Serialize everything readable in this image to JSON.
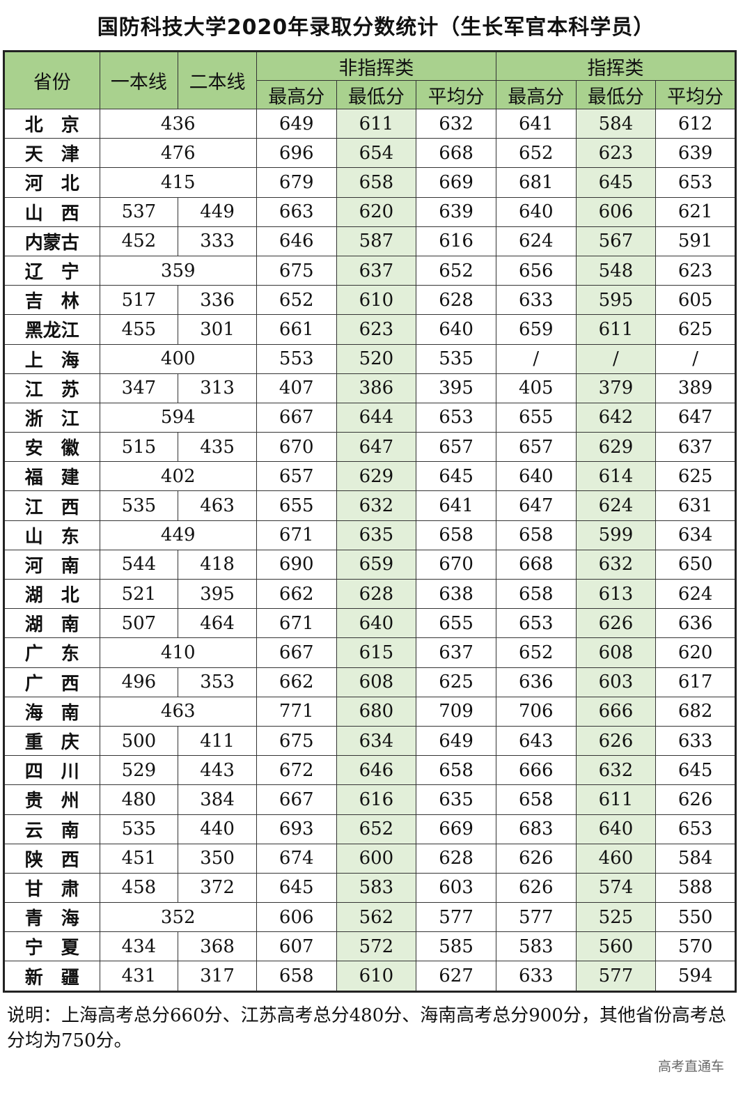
{
  "title": "国防科技大学2020年录取分数统计（生长军官本科学员）",
  "headers": {
    "province": "省份",
    "line1": "一本线",
    "line2": "二本线",
    "group1": "非指挥类",
    "group2": "指挥类",
    "max": "最高分",
    "min": "最低分",
    "avg": "平均分"
  },
  "colors": {
    "header_bg": "#a9d18e",
    "min_col_bg": "#e2efd9"
  },
  "rows": [
    {
      "p": "北　京",
      "l1": "436",
      "l2": null,
      "v": [
        "649",
        "611",
        "632",
        "641",
        "584",
        "612"
      ]
    },
    {
      "p": "天　津",
      "l1": "476",
      "l2": null,
      "v": [
        "696",
        "654",
        "668",
        "652",
        "623",
        "639"
      ]
    },
    {
      "p": "河　北",
      "l1": "415",
      "l2": null,
      "v": [
        "679",
        "658",
        "669",
        "681",
        "645",
        "653"
      ]
    },
    {
      "p": "山　西",
      "l1": "537",
      "l2": "449",
      "v": [
        "663",
        "620",
        "639",
        "640",
        "606",
        "621"
      ]
    },
    {
      "p": "内蒙古",
      "l1": "452",
      "l2": "333",
      "v": [
        "646",
        "587",
        "616",
        "624",
        "567",
        "591"
      ]
    },
    {
      "p": "辽　宁",
      "l1": "359",
      "l2": null,
      "v": [
        "675",
        "637",
        "652",
        "656",
        "548",
        "623"
      ]
    },
    {
      "p": "吉　林",
      "l1": "517",
      "l2": "336",
      "v": [
        "652",
        "610",
        "628",
        "633",
        "595",
        "605"
      ]
    },
    {
      "p": "黑龙江",
      "l1": "455",
      "l2": "301",
      "v": [
        "661",
        "623",
        "640",
        "659",
        "611",
        "625"
      ]
    },
    {
      "p": "上　海",
      "l1": "400",
      "l2": null,
      "v": [
        "553",
        "520",
        "535",
        "/",
        "/",
        "/"
      ]
    },
    {
      "p": "江　苏",
      "l1": "347",
      "l2": "313",
      "v": [
        "407",
        "386",
        "395",
        "405",
        "379",
        "389"
      ]
    },
    {
      "p": "浙　江",
      "l1": "594",
      "l2": null,
      "v": [
        "667",
        "644",
        "653",
        "655",
        "642",
        "647"
      ]
    },
    {
      "p": "安　徽",
      "l1": "515",
      "l2": "435",
      "v": [
        "670",
        "647",
        "657",
        "657",
        "629",
        "637"
      ]
    },
    {
      "p": "福　建",
      "l1": "402",
      "l2": null,
      "v": [
        "657",
        "629",
        "645",
        "640",
        "614",
        "625"
      ]
    },
    {
      "p": "江　西",
      "l1": "535",
      "l2": "463",
      "v": [
        "655",
        "632",
        "641",
        "647",
        "624",
        "631"
      ]
    },
    {
      "p": "山　东",
      "l1": "449",
      "l2": null,
      "v": [
        "671",
        "635",
        "658",
        "658",
        "599",
        "634"
      ]
    },
    {
      "p": "河　南",
      "l1": "544",
      "l2": "418",
      "v": [
        "690",
        "659",
        "670",
        "668",
        "632",
        "650"
      ]
    },
    {
      "p": "湖　北",
      "l1": "521",
      "l2": "395",
      "v": [
        "662",
        "628",
        "638",
        "658",
        "613",
        "624"
      ]
    },
    {
      "p": "湖　南",
      "l1": "507",
      "l2": "464",
      "v": [
        "671",
        "640",
        "655",
        "653",
        "626",
        "636"
      ]
    },
    {
      "p": "广　东",
      "l1": "410",
      "l2": null,
      "v": [
        "667",
        "615",
        "637",
        "652",
        "608",
        "620"
      ]
    },
    {
      "p": "广　西",
      "l1": "496",
      "l2": "353",
      "v": [
        "662",
        "608",
        "625",
        "636",
        "603",
        "617"
      ]
    },
    {
      "p": "海　南",
      "l1": "463",
      "l2": null,
      "v": [
        "771",
        "680",
        "709",
        "706",
        "666",
        "682"
      ]
    },
    {
      "p": "重　庆",
      "l1": "500",
      "l2": "411",
      "v": [
        "675",
        "634",
        "649",
        "643",
        "626",
        "633"
      ]
    },
    {
      "p": "四　川",
      "l1": "529",
      "l2": "443",
      "v": [
        "672",
        "646",
        "658",
        "666",
        "632",
        "645"
      ]
    },
    {
      "p": "贵　州",
      "l1": "480",
      "l2": "384",
      "v": [
        "667",
        "616",
        "635",
        "658",
        "611",
        "626"
      ]
    },
    {
      "p": "云　南",
      "l1": "535",
      "l2": "440",
      "v": [
        "693",
        "652",
        "669",
        "683",
        "640",
        "653"
      ]
    },
    {
      "p": "陕　西",
      "l1": "451",
      "l2": "350",
      "v": [
        "674",
        "600",
        "628",
        "626",
        "460",
        "584"
      ]
    },
    {
      "p": "甘　肃",
      "l1": "458",
      "l2": "372",
      "v": [
        "645",
        "583",
        "603",
        "626",
        "574",
        "588"
      ]
    },
    {
      "p": "青　海",
      "l1": "352",
      "l2": null,
      "v": [
        "606",
        "562",
        "577",
        "577",
        "525",
        "550"
      ]
    },
    {
      "p": "宁　夏",
      "l1": "434",
      "l2": "368",
      "v": [
        "607",
        "572",
        "585",
        "583",
        "560",
        "570"
      ]
    },
    {
      "p": "新　疆",
      "l1": "431",
      "l2": "317",
      "v": [
        "658",
        "610",
        "627",
        "633",
        "577",
        "594"
      ]
    }
  ],
  "note": "说明：上海高考总分660分、江苏高考总分480分、海南高考总分900分，其他省份高考总分均为750分。",
  "watermark": "高考直通车"
}
